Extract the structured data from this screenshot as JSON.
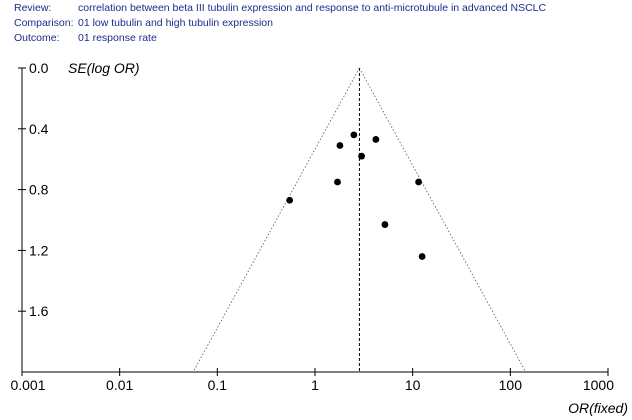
{
  "header": {
    "review_label": "Review:",
    "review_value": "correlation between beta III tubulin expression and response to anti-microtubule in advanced NSCLC",
    "comparison_label": "Comparison:",
    "comparison_value": "01 low tubulin and high tubulin expression",
    "outcome_label": "Outcome:",
    "outcome_value": "01 response rate"
  },
  "chart_data": {
    "type": "scatter",
    "subtype": "funnel plot",
    "xlabel": "OR(fixed)",
    "ylabel": "SE(log OR)",
    "x_scale": "log",
    "xlim": [
      0.001,
      1000
    ],
    "x_ticks": [
      "0.001",
      "0.01",
      "0.1",
      "1",
      "10",
      "100",
      "1000"
    ],
    "x_tick_values": [
      0.001,
      0.01,
      0.1,
      1,
      10,
      100,
      1000
    ],
    "y_reversed": true,
    "ylim": [
      0.0,
      2.0
    ],
    "y_ticks": [
      "0.0",
      "0.4",
      "0.8",
      "1.2",
      "1.6"
    ],
    "y_tick_values": [
      0.0,
      0.4,
      0.8,
      1.2,
      1.6
    ],
    "pooled_or": 2.85,
    "funnel": "95% pseudo-confidence limits (dotted)",
    "points": [
      {
        "or": 2.5,
        "se": 0.44
      },
      {
        "or": 4.2,
        "se": 0.47
      },
      {
        "or": 1.8,
        "se": 0.51
      },
      {
        "or": 3.0,
        "se": 0.58
      },
      {
        "or": 1.7,
        "se": 0.75
      },
      {
        "or": 11.5,
        "se": 0.75
      },
      {
        "or": 0.55,
        "se": 0.87
      },
      {
        "or": 5.2,
        "se": 1.03
      },
      {
        "or": 12.5,
        "se": 1.24
      }
    ],
    "grid": false,
    "legend": "none"
  }
}
